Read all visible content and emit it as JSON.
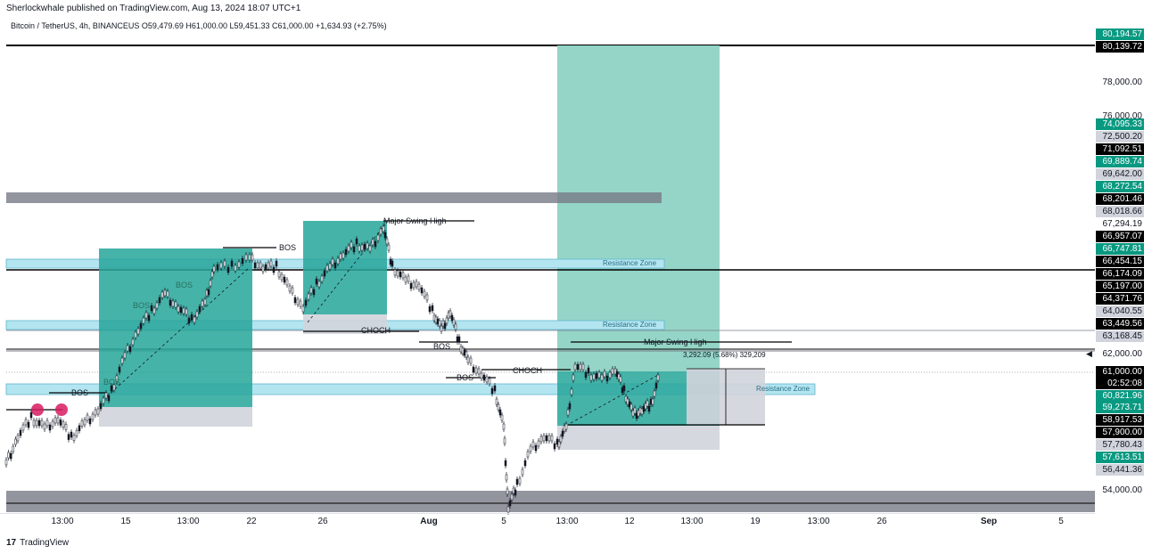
{
  "header": {
    "published": "Sherlockwhale published on TradingView.com, Aug 13, 2024 18:07 UTC+1",
    "symbol_line": "Bitcoin / TetherUS, 4h, BINANCEUS  O59,479.69  H61,000.00  L59,451.33  C61,000.00  +1,634.93 (+2.75%)"
  },
  "annotations": {
    "major_swing_high_1": "Major Swing High",
    "major_swing_high_2": "Major Swing High",
    "bos_1": "BOS",
    "bos_2": "BOS",
    "bos_3": "BOS",
    "bos_4": "BOS",
    "bos_5": "BOS",
    "bos_6": "BOS",
    "bos_7": "BOS",
    "choch_1": "CHOCH",
    "choch_2": "CHOCH",
    "resistance_1": "Resistance Zone",
    "resistance_2": "Resistance Zone",
    "resistance_3": "Resistance Zone",
    "measure": "3,292.09 (5.68%) 329,209"
  },
  "price_ticks": [
    "78,000.00",
    "76,000.00",
    "62,000.00",
    "54,000.00"
  ],
  "price_tags": [
    {
      "text": "80,194.57",
      "bg": "#089981",
      "fg": "#ffffff"
    },
    {
      "text": "80,139.72",
      "bg": "#000000",
      "fg": "#ffffff"
    },
    {
      "text": "74,095.33",
      "bg": "#089981",
      "fg": "#ffffff"
    },
    {
      "text": "72,500.20",
      "bg": "#d1d4dc",
      "fg": "#131722"
    },
    {
      "text": "71,092.51",
      "bg": "#000000",
      "fg": "#ffffff"
    },
    {
      "text": "69,889.74",
      "bg": "#089981",
      "fg": "#ffffff"
    },
    {
      "text": "69,642.00",
      "bg": "#d1d4dc",
      "fg": "#131722"
    },
    {
      "text": "68,272.54",
      "bg": "#089981",
      "fg": "#ffffff"
    },
    {
      "text": "68,201.46",
      "bg": "#000000",
      "fg": "#ffffff"
    },
    {
      "text": "68,018.66",
      "bg": "#d1d4dc",
      "fg": "#131722"
    },
    {
      "text": "67,294.19",
      "bg": "#ffffff",
      "fg": "#131722"
    },
    {
      "text": "66,957.07",
      "bg": "#000000",
      "fg": "#ffffff"
    },
    {
      "text": "66,747.81",
      "bg": "#089981",
      "fg": "#ffffff"
    },
    {
      "text": "66,454.15",
      "bg": "#000000",
      "fg": "#ffffff"
    },
    {
      "text": "66,174.09",
      "bg": "#000000",
      "fg": "#ffffff"
    },
    {
      "text": "65,197.00",
      "bg": "#000000",
      "fg": "#ffffff"
    },
    {
      "text": "64,371.76",
      "bg": "#000000",
      "fg": "#ffffff"
    },
    {
      "text": "64,040.55",
      "bg": "#d1d4dc",
      "fg": "#131722"
    },
    {
      "text": "63,449.56",
      "bg": "#000000",
      "fg": "#ffffff"
    },
    {
      "text": "63,168.45",
      "bg": "#d1d4dc",
      "fg": "#131722"
    },
    {
      "text": "61,000.00",
      "bg": "#000000",
      "fg": "#ffffff"
    },
    {
      "text": "02:52:08",
      "bg": "#000000",
      "fg": "#ffffff"
    },
    {
      "text": "60,821.96",
      "bg": "#089981",
      "fg": "#ffffff"
    },
    {
      "text": "59,273.71",
      "bg": "#089981",
      "fg": "#ffffff"
    },
    {
      "text": "58,917.53",
      "bg": "#000000",
      "fg": "#ffffff"
    },
    {
      "text": "57,900.00",
      "bg": "#000000",
      "fg": "#ffffff"
    },
    {
      "text": "57,780.43",
      "bg": "#d1d4dc",
      "fg": "#131722"
    },
    {
      "text": "57,613.51",
      "bg": "#089981",
      "fg": "#ffffff"
    },
    {
      "text": "56,441.36",
      "bg": "#d1d4dc",
      "fg": "#131722"
    }
  ],
  "time_ticks": [
    "13:00",
    "15",
    "13:00",
    "22",
    "26",
    "Aug",
    "5",
    "13:00",
    "12",
    "13:00",
    "19",
    "13:00",
    "26",
    "Sep",
    "5"
  ],
  "footer": {
    "brand": "TradingView"
  },
  "colors": {
    "teal_zone": "#26a69a",
    "light_teal": "#8ed3c4",
    "resistance": "#b3e5f0",
    "grey_zone": "#d1d4dc"
  }
}
